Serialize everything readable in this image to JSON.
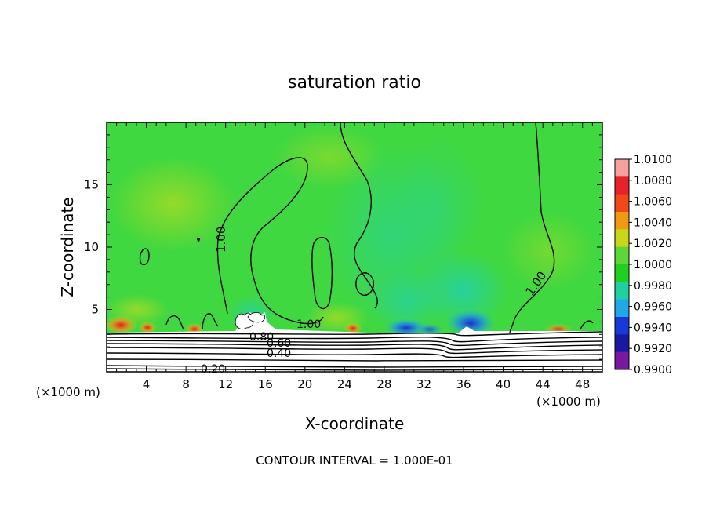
{
  "chart_data": {
    "type": "heatmap",
    "title": "saturation ratio",
    "xlabel": "X-coordinate",
    "ylabel": "Z-coordinate",
    "x_unit": "(×1000 m)",
    "y_unit": "",
    "x_unit_note_left": "(×1000 m)",
    "x_unit_note_right": "(×1000 m)",
    "footer": "CONTOUR INTERVAL = 1.000E-01",
    "xlim": [
      0,
      50
    ],
    "ylim": [
      0,
      20
    ],
    "x_ticks": [
      "4",
      "8",
      "12",
      "16",
      "20",
      "24",
      "28",
      "32",
      "36",
      "40",
      "44",
      "48"
    ],
    "y_ticks": [
      "5",
      "10",
      "15"
    ],
    "colorbar_labels": [
      "1.0100",
      "1.0080",
      "1.0060",
      "1.0040",
      "1.0020",
      "1.0000",
      "0.9980",
      "0.9960",
      "0.9940",
      "0.9920",
      "0.9900"
    ],
    "colorbar_colors": [
      "#f6a0a0",
      "#e8222a",
      "#f04818",
      "#f09a14",
      "#c8d818",
      "#5ed63a",
      "#20d020",
      "#20d0a0",
      "#20a8e8",
      "#1838d8",
      "#1818a0",
      "#7818a0"
    ],
    "contour_labels": [
      "1.00",
      "1.00",
      "1.00",
      "0.80",
      "0.60",
      "0.40",
      "0.20"
    ]
  }
}
